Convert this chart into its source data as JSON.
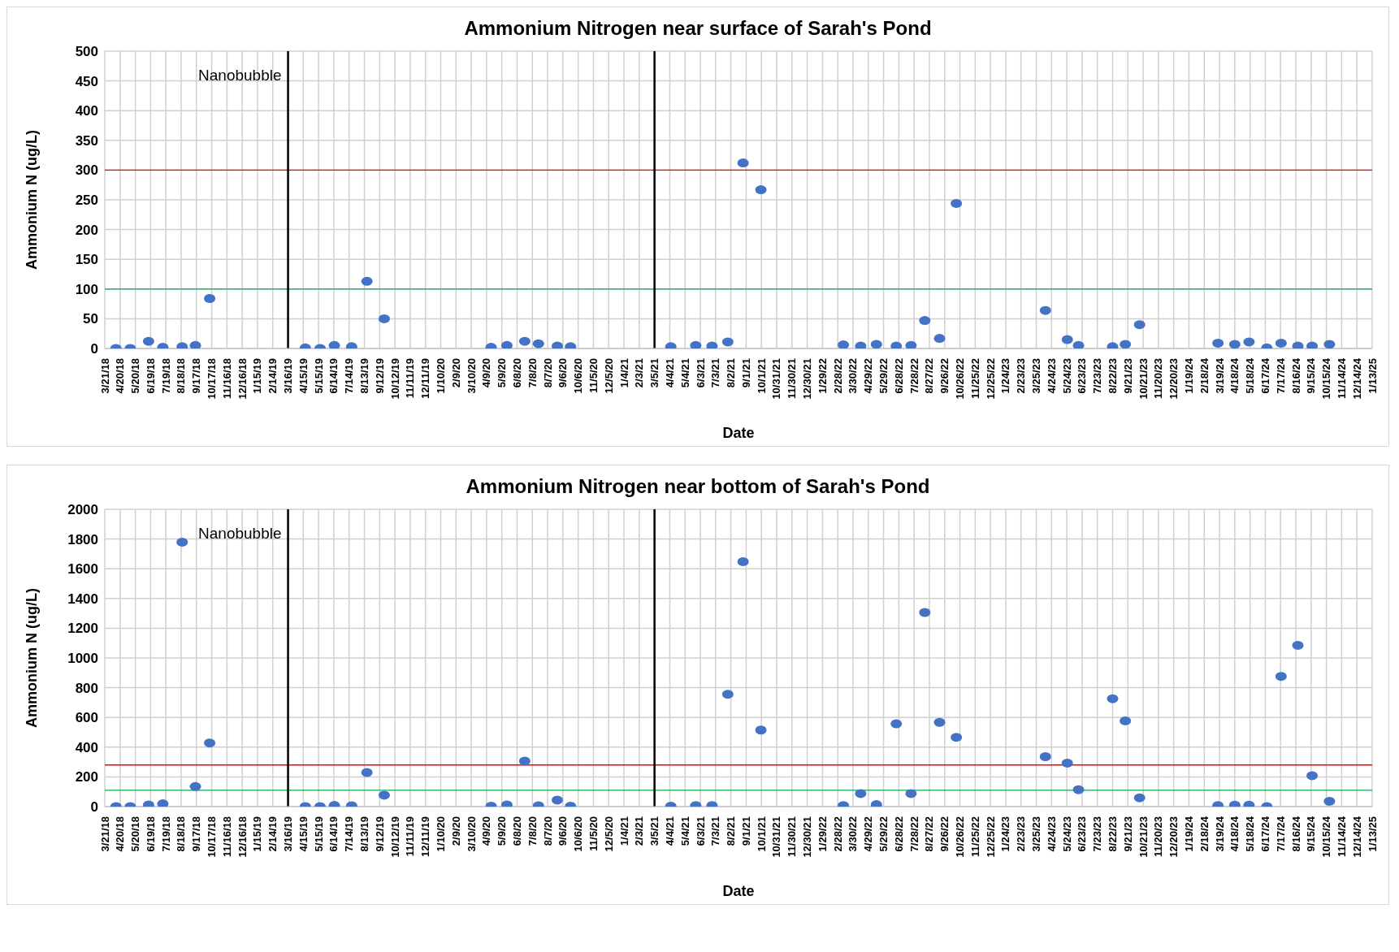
{
  "chart_data": [
    {
      "type": "scatter",
      "title": "Ammonium Nitrogen near surface of Sarah's Pond",
      "xlabel": "Date",
      "ylabel": "Ammonium N (ug/L)",
      "color": "#4472c4",
      "marker": "circle",
      "grid": true,
      "x": [
        "2018-04-12",
        "2018-05-10",
        "2018-06-15",
        "2018-07-13",
        "2018-08-20",
        "2018-09-15",
        "2018-10-13",
        "2019-04-19",
        "2019-05-18",
        "2019-06-15",
        "2019-07-19",
        "2019-08-18",
        "2019-09-21",
        "2020-04-18",
        "2020-05-19",
        "2020-06-23",
        "2020-07-20",
        "2020-08-26",
        "2020-09-21",
        "2021-04-06",
        "2021-05-25",
        "2021-06-26",
        "2021-07-27",
        "2021-08-26",
        "2021-09-30",
        "2022-03-11",
        "2022-04-14",
        "2022-05-15",
        "2022-06-23",
        "2022-07-22",
        "2022-08-18",
        "2022-09-16",
        "2022-10-19",
        "2023-04-12",
        "2023-05-25",
        "2023-06-16",
        "2023-08-22",
        "2023-09-16",
        "2023-10-14",
        "2024-03-16",
        "2024-04-18",
        "2024-05-16",
        "2024-06-20",
        "2024-07-18",
        "2024-08-20",
        "2024-09-17",
        "2024-10-21"
      ],
      "values": [
        0,
        0,
        12,
        2,
        3,
        5,
        84,
        1,
        0,
        5,
        3,
        113,
        50,
        2,
        5,
        12,
        8,
        4,
        3,
        3,
        5,
        4,
        11,
        312,
        267,
        6,
        4,
        7,
        4,
        5,
        47,
        17,
        244,
        64,
        15,
        5,
        3,
        7,
        40,
        9,
        7,
        11,
        1,
        9,
        4,
        4,
        7
      ],
      "ylim": [
        0,
        500
      ],
      "yticks": [
        0,
        50,
        100,
        150,
        200,
        250,
        300,
        350,
        400,
        450,
        500
      ],
      "xlim": [
        "2018-03-21",
        "2025-01-13"
      ],
      "xticks": [
        {
          "value": "2018-03-21",
          "label": "3/21/18"
        },
        {
          "value": "2018-04-20",
          "label": "4/20/18"
        },
        {
          "value": "2018-05-20",
          "label": "5/20/18"
        },
        {
          "value": "2018-06-19",
          "label": "6/19/18"
        },
        {
          "value": "2018-07-19",
          "label": "7/19/18"
        },
        {
          "value": "2018-08-18",
          "label": "8/18/18"
        },
        {
          "value": "2018-09-17",
          "label": "9/17/18"
        },
        {
          "value": "2018-10-17",
          "label": "10/17/18"
        },
        {
          "value": "2018-11-16",
          "label": "11/16/18"
        },
        {
          "value": "2018-12-16",
          "label": "12/16/18"
        },
        {
          "value": "2019-01-15",
          "label": "1/15/19"
        },
        {
          "value": "2019-02-14",
          "label": "2/14/19"
        },
        {
          "value": "2019-03-16",
          "label": "3/16/19"
        },
        {
          "value": "2019-04-15",
          "label": "4/15/19"
        },
        {
          "value": "2019-05-15",
          "label": "5/15/19"
        },
        {
          "value": "2019-06-14",
          "label": "6/14/19"
        },
        {
          "value": "2019-07-14",
          "label": "7/14/19"
        },
        {
          "value": "2019-08-13",
          "label": "8/13/19"
        },
        {
          "value": "2019-09-12",
          "label": "9/12/19"
        },
        {
          "value": "2019-10-12",
          "label": "10/12/19"
        },
        {
          "value": "2019-11-11",
          "label": "11/11/19"
        },
        {
          "value": "2019-12-11",
          "label": "12/11/19"
        },
        {
          "value": "2020-01-10",
          "label": "1/10/20"
        },
        {
          "value": "2020-02-09",
          "label": "2/9/20"
        },
        {
          "value": "2020-03-10",
          "label": "3/10/20"
        },
        {
          "value": "2020-04-09",
          "label": "4/9/20"
        },
        {
          "value": "2020-05-09",
          "label": "5/9/20"
        },
        {
          "value": "2020-06-08",
          "label": "6/8/20"
        },
        {
          "value": "2020-07-08",
          "label": "7/8/20"
        },
        {
          "value": "2020-08-07",
          "label": "8/7/20"
        },
        {
          "value": "2020-09-06",
          "label": "9/6/20"
        },
        {
          "value": "2020-10-06",
          "label": "10/6/20"
        },
        {
          "value": "2020-11-05",
          "label": "11/5/20"
        },
        {
          "value": "2020-12-05",
          "label": "12/5/20"
        },
        {
          "value": "2021-01-04",
          "label": "1/4/21"
        },
        {
          "value": "2021-02-03",
          "label": "2/3/21"
        },
        {
          "value": "2021-03-05",
          "label": "3/5/21"
        },
        {
          "value": "2021-04-04",
          "label": "4/4/21"
        },
        {
          "value": "2021-05-04",
          "label": "5/4/21"
        },
        {
          "value": "2021-06-03",
          "label": "6/3/21"
        },
        {
          "value": "2021-07-03",
          "label": "7/3/21"
        },
        {
          "value": "2021-08-02",
          "label": "8/2/21"
        },
        {
          "value": "2021-09-01",
          "label": "9/1/21"
        },
        {
          "value": "2021-10-01",
          "label": "10/1/21"
        },
        {
          "value": "2021-10-31",
          "label": "10/31/21"
        },
        {
          "value": "2021-11-30",
          "label": "11/30/21"
        },
        {
          "value": "2021-12-30",
          "label": "12/30/21"
        },
        {
          "value": "2022-01-29",
          "label": "1/29/22"
        },
        {
          "value": "2022-02-28",
          "label": "2/28/22"
        },
        {
          "value": "2022-03-30",
          "label": "3/30/22"
        },
        {
          "value": "2022-04-29",
          "label": "4/29/22"
        },
        {
          "value": "2022-05-29",
          "label": "5/29/22"
        },
        {
          "value": "2022-06-28",
          "label": "6/28/22"
        },
        {
          "value": "2022-07-28",
          "label": "7/28/22"
        },
        {
          "value": "2022-08-27",
          "label": "8/27/22"
        },
        {
          "value": "2022-09-26",
          "label": "9/26/22"
        },
        {
          "value": "2022-10-26",
          "label": "10/26/22"
        },
        {
          "value": "2022-11-25",
          "label": "11/25/22"
        },
        {
          "value": "2022-12-25",
          "label": "12/25/22"
        },
        {
          "value": "2023-01-24",
          "label": "1/24/23"
        },
        {
          "value": "2023-02-23",
          "label": "2/23/23"
        },
        {
          "value": "2023-03-25",
          "label": "3/25/23"
        },
        {
          "value": "2023-04-24",
          "label": "4/24/23"
        },
        {
          "value": "2023-05-24",
          "label": "5/24/23"
        },
        {
          "value": "2023-06-23",
          "label": "6/23/23"
        },
        {
          "value": "2023-07-23",
          "label": "7/23/23"
        },
        {
          "value": "2023-08-22",
          "label": "8/22/23"
        },
        {
          "value": "2023-09-21",
          "label": "9/21/23"
        },
        {
          "value": "2023-10-21",
          "label": "10/21/23"
        },
        {
          "value": "2023-11-20",
          "label": "11/20/23"
        },
        {
          "value": "2023-12-20",
          "label": "12/20/23"
        },
        {
          "value": "2024-01-19",
          "label": "1/19/24"
        },
        {
          "value": "2024-02-18",
          "label": "2/18/24"
        },
        {
          "value": "2024-03-19",
          "label": "3/19/24"
        },
        {
          "value": "2024-04-18",
          "label": "4/18/24"
        },
        {
          "value": "2024-05-18",
          "label": "5/18/24"
        },
        {
          "value": "2024-06-17",
          "label": "6/17/24"
        },
        {
          "value": "2024-07-17",
          "label": "7/17/24"
        },
        {
          "value": "2024-08-16",
          "label": "8/16/24"
        },
        {
          "value": "2024-09-15",
          "label": "9/15/24"
        },
        {
          "value": "2024-10-15",
          "label": "10/15/24"
        },
        {
          "value": "2024-11-14",
          "label": "11/14/24"
        },
        {
          "value": "2024-12-14",
          "label": "12/14/24"
        },
        {
          "value": "2025-01-13",
          "label": "1/13/25"
        }
      ],
      "ref_lines": [
        {
          "axis": "y",
          "value": 300,
          "color": "#ff0000"
        },
        {
          "axis": "y",
          "value": 100,
          "color": "#00b050"
        },
        {
          "axis": "x",
          "value": "2019-03-16",
          "label": "Nanobubble",
          "color": "#000000"
        },
        {
          "axis": "x",
          "value": "2021-03-05",
          "color": "#000000"
        }
      ]
    },
    {
      "type": "scatter",
      "title": "Ammonium Nitrogen near bottom of Sarah's Pond",
      "xlabel": "Date",
      "ylabel": "Ammonium N (ug/L)",
      "color": "#4472c4",
      "marker": "circle",
      "grid": true,
      "x": [
        "2018-04-12",
        "2018-05-10",
        "2018-06-15",
        "2018-07-13",
        "2018-08-20",
        "2018-09-15",
        "2018-10-13",
        "2019-04-19",
        "2019-05-18",
        "2019-06-15",
        "2019-07-19",
        "2019-08-18",
        "2019-09-21",
        "2020-04-18",
        "2020-05-19",
        "2020-06-23",
        "2020-07-20",
        "2020-08-26",
        "2020-09-21",
        "2021-04-06",
        "2021-05-25",
        "2021-06-26",
        "2021-07-27",
        "2021-08-26",
        "2021-09-30",
        "2022-03-11",
        "2022-04-14",
        "2022-05-15",
        "2022-06-23",
        "2022-07-22",
        "2022-08-18",
        "2022-09-16",
        "2022-10-19",
        "2023-04-12",
        "2023-05-25",
        "2023-06-16",
        "2023-08-22",
        "2023-09-16",
        "2023-10-14",
        "2024-03-16",
        "2024-04-18",
        "2024-05-16",
        "2024-06-20",
        "2024-07-18",
        "2024-08-20",
        "2024-09-17",
        "2024-10-21"
      ],
      "values": [
        0,
        0,
        11,
        19,
        1779,
        135,
        428,
        0,
        0,
        8,
        6,
        229,
        77,
        3,
        11,
        306,
        6,
        44,
        3,
        3,
        7,
        7,
        756,
        1648,
        515,
        7,
        88,
        13,
        557,
        88,
        1306,
        567,
        466,
        336,
        293,
        114,
        726,
        577,
        59,
        7,
        10,
        10,
        0,
        876,
        1085,
        208,
        36
      ],
      "ylim": [
        0,
        2000
      ],
      "yticks": [
        0,
        200,
        400,
        600,
        800,
        1000,
        1200,
        1400,
        1600,
        1800,
        2000
      ],
      "xlim": [
        "2018-03-21",
        "2025-01-13"
      ],
      "xticks": [
        {
          "value": "2018-03-21",
          "label": "3/21/18"
        },
        {
          "value": "2018-04-20",
          "label": "4/20/18"
        },
        {
          "value": "2018-05-20",
          "label": "5/20/18"
        },
        {
          "value": "2018-06-19",
          "label": "6/19/18"
        },
        {
          "value": "2018-07-19",
          "label": "7/19/18"
        },
        {
          "value": "2018-08-18",
          "label": "8/18/18"
        },
        {
          "value": "2018-09-17",
          "label": "9/17/18"
        },
        {
          "value": "2018-10-17",
          "label": "10/17/18"
        },
        {
          "value": "2018-11-16",
          "label": "11/16/18"
        },
        {
          "value": "2018-12-16",
          "label": "12/16/18"
        },
        {
          "value": "2019-01-15",
          "label": "1/15/19"
        },
        {
          "value": "2019-02-14",
          "label": "2/14/19"
        },
        {
          "value": "2019-03-16",
          "label": "3/16/19"
        },
        {
          "value": "2019-04-15",
          "label": "4/15/19"
        },
        {
          "value": "2019-05-15",
          "label": "5/15/19"
        },
        {
          "value": "2019-06-14",
          "label": "6/14/19"
        },
        {
          "value": "2019-07-14",
          "label": "7/14/19"
        },
        {
          "value": "2019-08-13",
          "label": "8/13/19"
        },
        {
          "value": "2019-09-12",
          "label": "9/12/19"
        },
        {
          "value": "2019-10-12",
          "label": "10/12/19"
        },
        {
          "value": "2019-11-11",
          "label": "11/11/19"
        },
        {
          "value": "2019-12-11",
          "label": "12/11/19"
        },
        {
          "value": "2020-01-10",
          "label": "1/10/20"
        },
        {
          "value": "2020-02-09",
          "label": "2/9/20"
        },
        {
          "value": "2020-03-10",
          "label": "3/10/20"
        },
        {
          "value": "2020-04-09",
          "label": "4/9/20"
        },
        {
          "value": "2020-05-09",
          "label": "5/9/20"
        },
        {
          "value": "2020-06-08",
          "label": "6/8/20"
        },
        {
          "value": "2020-07-08",
          "label": "7/8/20"
        },
        {
          "value": "2020-08-07",
          "label": "8/7/20"
        },
        {
          "value": "2020-09-06",
          "label": "9/6/20"
        },
        {
          "value": "2020-10-06",
          "label": "10/6/20"
        },
        {
          "value": "2020-11-05",
          "label": "11/5/20"
        },
        {
          "value": "2020-12-05",
          "label": "12/5/20"
        },
        {
          "value": "2021-01-04",
          "label": "1/4/21"
        },
        {
          "value": "2021-02-03",
          "label": "2/3/21"
        },
        {
          "value": "2021-03-05",
          "label": "3/5/21"
        },
        {
          "value": "2021-04-04",
          "label": "4/4/21"
        },
        {
          "value": "2021-05-04",
          "label": "5/4/21"
        },
        {
          "value": "2021-06-03",
          "label": "6/3/21"
        },
        {
          "value": "2021-07-03",
          "label": "7/3/21"
        },
        {
          "value": "2021-08-02",
          "label": "8/2/21"
        },
        {
          "value": "2021-09-01",
          "label": "9/1/21"
        },
        {
          "value": "2021-10-01",
          "label": "10/1/21"
        },
        {
          "value": "2021-10-31",
          "label": "10/31/21"
        },
        {
          "value": "2021-11-30",
          "label": "11/30/21"
        },
        {
          "value": "2021-12-30",
          "label": "12/30/21"
        },
        {
          "value": "2022-01-29",
          "label": "1/29/22"
        },
        {
          "value": "2022-02-28",
          "label": "2/28/22"
        },
        {
          "value": "2022-03-30",
          "label": "3/30/22"
        },
        {
          "value": "2022-04-29",
          "label": "4/29/22"
        },
        {
          "value": "2022-05-29",
          "label": "5/29/22"
        },
        {
          "value": "2022-06-28",
          "label": "6/28/22"
        },
        {
          "value": "2022-07-28",
          "label": "7/28/22"
        },
        {
          "value": "2022-08-27",
          "label": "8/27/22"
        },
        {
          "value": "2022-09-26",
          "label": "9/26/22"
        },
        {
          "value": "2022-10-26",
          "label": "10/26/22"
        },
        {
          "value": "2022-11-25",
          "label": "11/25/22"
        },
        {
          "value": "2022-12-25",
          "label": "12/25/22"
        },
        {
          "value": "2023-01-24",
          "label": "1/24/23"
        },
        {
          "value": "2023-02-23",
          "label": "2/23/23"
        },
        {
          "value": "2023-03-25",
          "label": "3/25/23"
        },
        {
          "value": "2023-04-24",
          "label": "4/24/23"
        },
        {
          "value": "2023-05-24",
          "label": "5/24/23"
        },
        {
          "value": "2023-06-23",
          "label": "6/23/23"
        },
        {
          "value": "2023-07-23",
          "label": "7/23/23"
        },
        {
          "value": "2023-08-22",
          "label": "8/22/23"
        },
        {
          "value": "2023-09-21",
          "label": "9/21/23"
        },
        {
          "value": "2023-10-21",
          "label": "10/21/23"
        },
        {
          "value": "2023-11-20",
          "label": "11/20/23"
        },
        {
          "value": "2023-12-20",
          "label": "12/20/23"
        },
        {
          "value": "2024-01-19",
          "label": "1/19/24"
        },
        {
          "value": "2024-02-18",
          "label": "2/18/24"
        },
        {
          "value": "2024-03-19",
          "label": "3/19/24"
        },
        {
          "value": "2024-04-18",
          "label": "4/18/24"
        },
        {
          "value": "2024-05-18",
          "label": "5/18/24"
        },
        {
          "value": "2024-06-17",
          "label": "6/17/24"
        },
        {
          "value": "2024-07-17",
          "label": "7/17/24"
        },
        {
          "value": "2024-08-16",
          "label": "8/16/24"
        },
        {
          "value": "2024-09-15",
          "label": "9/15/24"
        },
        {
          "value": "2024-10-15",
          "label": "10/15/24"
        },
        {
          "value": "2024-11-14",
          "label": "11/14/24"
        },
        {
          "value": "2024-12-14",
          "label": "12/14/24"
        },
        {
          "value": "2025-01-13",
          "label": "1/13/25"
        }
      ],
      "ref_lines": [
        {
          "axis": "y",
          "value": 280,
          "color": "#ff0000"
        },
        {
          "axis": "y",
          "value": 110,
          "color": "#00b050"
        },
        {
          "axis": "x",
          "value": "2019-03-16",
          "label": "Nanobubble",
          "color": "#000000"
        },
        {
          "axis": "x",
          "value": "2021-03-05",
          "color": "#000000"
        }
      ]
    }
  ]
}
